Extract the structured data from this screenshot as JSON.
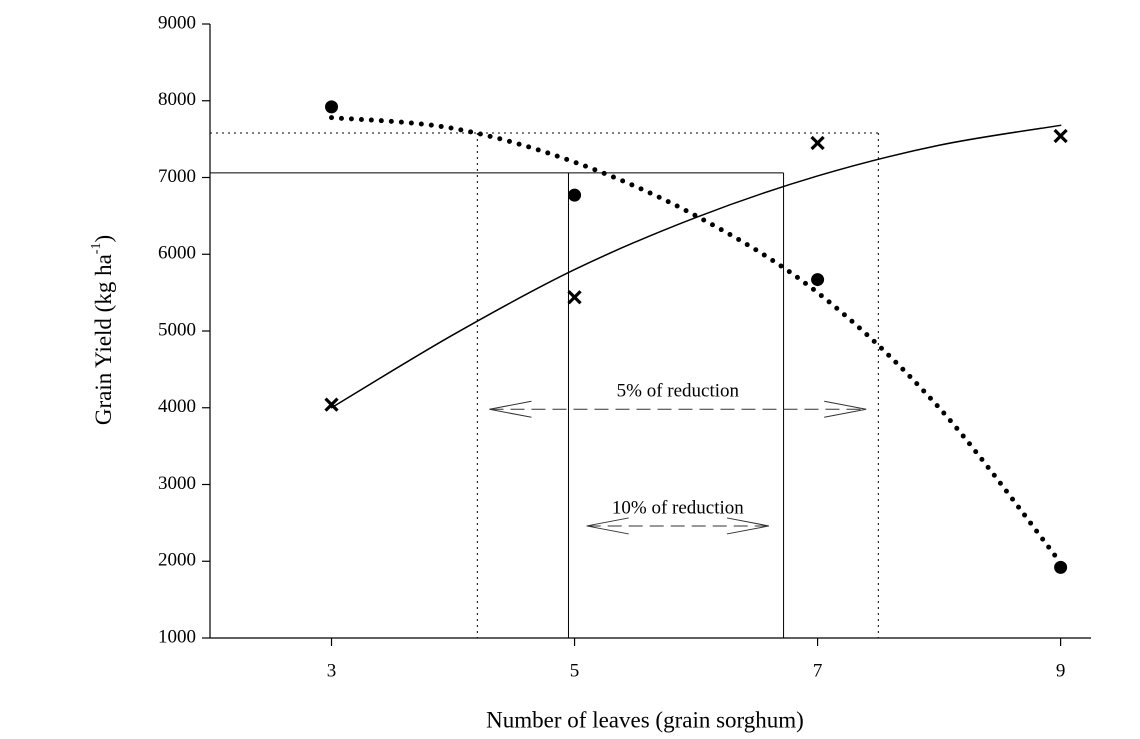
{
  "chart_data": {
    "type": "scatter",
    "xlabel": "Number of leaves (grain sorghum)",
    "ylabel": {
      "text": "Grain Yield (kg ha",
      "sup": "-1",
      "tail": ")"
    },
    "xlim": [
      2,
      9.25
    ],
    "ylim": [
      1000,
      9000
    ],
    "xticks": [
      3,
      5,
      7,
      9
    ],
    "yticks": [
      1000,
      2000,
      3000,
      4000,
      5000,
      6000,
      7000,
      8000,
      9000
    ],
    "series": [
      {
        "marker": "circle",
        "color": "#000000",
        "x": [
          3,
          5,
          7,
          9
        ],
        "values": [
          7920,
          6770,
          5670,
          1920
        ]
      },
      {
        "marker": "cross",
        "color": "#000000",
        "x": [
          3,
          5,
          7,
          9
        ],
        "values": [
          4040,
          5440,
          7450,
          7540
        ]
      }
    ],
    "curves": [
      {
        "style": "dotted",
        "color": "#000000",
        "x": [
          3,
          4,
          5,
          6,
          7,
          8,
          9
        ],
        "values": [
          7780,
          7640,
          7200,
          6500,
          5500,
          4000,
          1980
        ]
      },
      {
        "style": "solid",
        "color": "#000000",
        "x": [
          3,
          4,
          5,
          6,
          7,
          8,
          9
        ],
        "values": [
          4000,
          4950,
          5800,
          6480,
          7020,
          7420,
          7680
        ]
      }
    ],
    "reference_lines": [
      {
        "style": "dotted",
        "y": 7580,
        "x": [
          4.2,
          7.5
        ]
      },
      {
        "style": "solid",
        "y": 7060,
        "x": [
          4.95,
          6.72
        ]
      }
    ],
    "annotations": [
      {
        "text": "5% of reduction",
        "x": [
          4.3,
          7.4
        ],
        "y": 3980
      },
      {
        "text": "10% of reduction",
        "x": [
          5.1,
          6.6
        ],
        "y": 2460
      }
    ]
  }
}
